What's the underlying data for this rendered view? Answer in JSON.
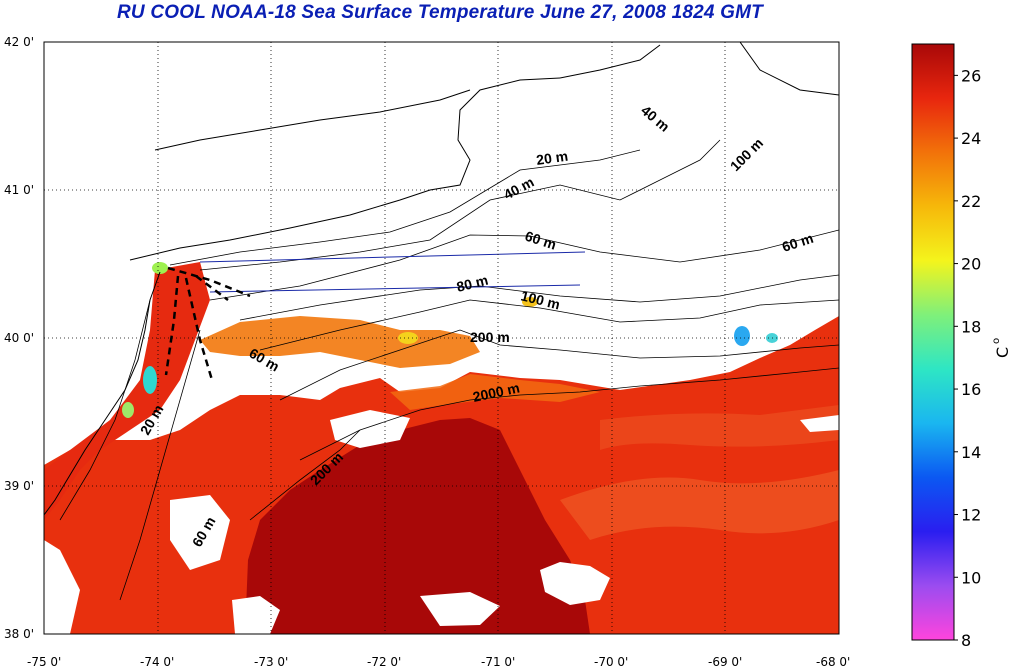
{
  "title": "RU COOL  NOAA-18 Sea Surface Temperature June 27, 2008 1824 GMT",
  "axes": {
    "lat_ticks": [
      "42 0'",
      "41 0'",
      "40 0'",
      "39 0'",
      "38 0'"
    ],
    "lon_ticks": [
      "-75 0'",
      "-74 0'",
      "-73 0'",
      "-72 0'",
      "-71 0'",
      "-70 0'",
      "-69 0'",
      "-68 0'"
    ]
  },
  "colorbar": {
    "unit": "C",
    "unit_sup": "o",
    "ticks": [
      "8",
      "10",
      "12",
      "14",
      "16",
      "18",
      "20",
      "22",
      "24",
      "26"
    ],
    "min": 8,
    "max": 27,
    "colors": [
      "#ff44dd",
      "#9b4cf0",
      "#2a1ef0",
      "#0b58f2",
      "#1ab6f0",
      "#2ee6c4",
      "#7ff07a",
      "#f4f41c",
      "#f6b80a",
      "#f2720a",
      "#e8260e",
      "#a80808"
    ]
  },
  "contour_labels": [
    {
      "id": "20-north",
      "text": "20 m"
    },
    {
      "id": "40-north",
      "text": "40 m"
    },
    {
      "id": "40-ne",
      "text": "40 m"
    },
    {
      "id": "100-ne",
      "text": "100 m"
    },
    {
      "id": "60-east",
      "text": "60 m"
    },
    {
      "id": "60-mid",
      "text": "60 m"
    },
    {
      "id": "80-mid",
      "text": "80 m"
    },
    {
      "id": "100-mid",
      "text": "100 m"
    },
    {
      "id": "200-mid",
      "text": "200 m"
    },
    {
      "id": "2000-mid",
      "text": "2000 m"
    },
    {
      "id": "60-nj",
      "text": "60 m"
    },
    {
      "id": "20-nj",
      "text": "20 m"
    },
    {
      "id": "200-sw",
      "text": "200 m"
    },
    {
      "id": "60-sw",
      "text": "60 m"
    }
  ],
  "colors": {
    "title": "#0a1fb4",
    "hot": "#a80808",
    "warm": "#e8300e",
    "land_line": "#000000",
    "transect": "#1a2aa8"
  }
}
